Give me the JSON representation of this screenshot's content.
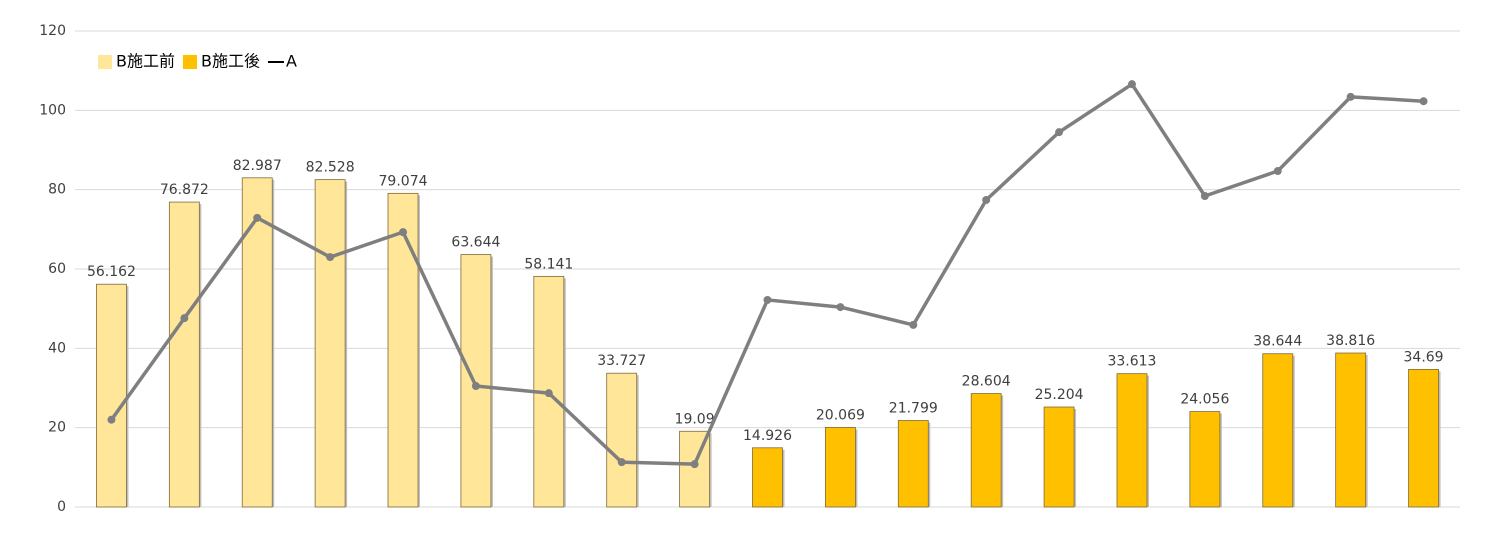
{
  "chart_data": {
    "type": "bar",
    "categories": [
      null,
      null,
      null,
      null,
      null,
      null,
      null,
      null,
      null,
      null,
      null,
      null,
      null,
      null,
      null,
      null,
      null,
      null,
      null
    ],
    "series": [
      {
        "name": "B施工前",
        "type": "bar",
        "color": "#FFE699",
        "values": [
          56.162,
          76.872,
          82.987,
          82.528,
          79.074,
          63.644,
          58.141,
          33.727,
          19.09,
          null,
          null,
          null,
          null,
          null,
          null,
          null,
          null,
          null,
          null
        ]
      },
      {
        "name": "B施工後",
        "type": "bar",
        "color": "#FFC000",
        "values": [
          null,
          null,
          null,
          null,
          null,
          null,
          null,
          null,
          null,
          14.926,
          20.069,
          21.799,
          28.604,
          25.204,
          33.613,
          24.056,
          38.644,
          38.816,
          34.69
        ]
      },
      {
        "name": "A",
        "type": "line",
        "color": "#7F7F7F",
        "values": [
          22,
          47.6,
          72.9,
          63,
          69.3,
          30.5,
          28.7,
          11.3,
          10.8,
          52.2,
          50.4,
          45.9,
          77.4,
          94.5,
          106.6,
          78.4,
          84.7,
          103.4,
          102.3
        ]
      }
    ],
    "ylim": [
      0,
      120
    ],
    "yticks": [
      0,
      20,
      40,
      60,
      80,
      100,
      120
    ],
    "grid": true,
    "legend": "top-left"
  }
}
